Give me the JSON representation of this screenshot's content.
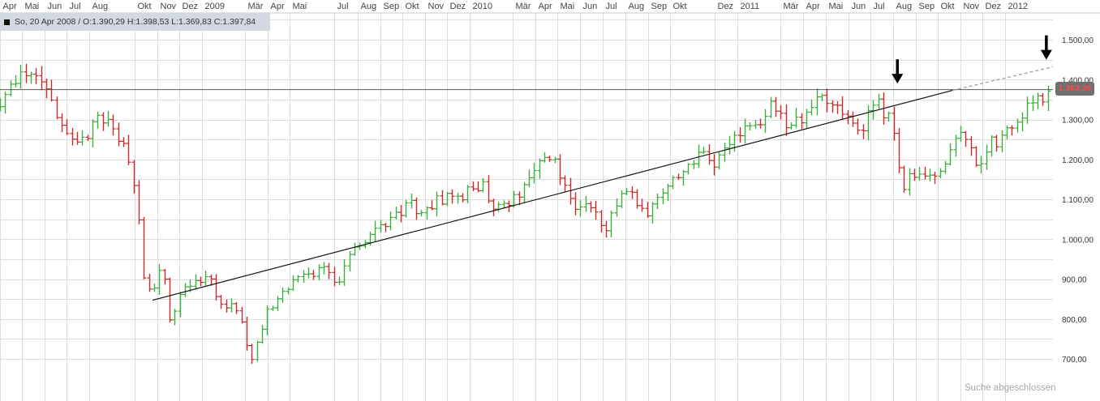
{
  "info_bar": {
    "text": "So, 20 Apr 2008 / O:1.390,29   H:1.398,53   L:1.369,83   C:1.397,84"
  },
  "last_price_badge": "1.362,36",
  "status_text": "Suche abgeschlossen",
  "colors": {
    "up": "#3cae3c",
    "down": "#cc2a2a",
    "grid": "#dcdcdc",
    "trendline": "#111111",
    "horizontal_line": "#555555",
    "projection": "#999999",
    "badge_bg": "#6f6f6f",
    "badge_text": "#ff4b4b",
    "info_bg": "#d2d9e3"
  },
  "chart_data": {
    "type": "ohlc",
    "interval": "weekly",
    "title": "",
    "xlabel": "",
    "ylabel": "",
    "ylim": [
      660,
      1570
    ],
    "y_ticks": [
      "700,00",
      "800,00",
      "900,00",
      "1.000,00",
      "1.100,00",
      "1.200,00",
      "1.300,00",
      "1.400,00",
      "1.500,00"
    ],
    "y_tick_values": [
      700,
      800,
      900,
      1000,
      1100,
      1200,
      1300,
      1400,
      1500
    ],
    "y_axis_side": "right",
    "grid": true,
    "x_tick_labels": [
      "Apr",
      "Mai",
      "Jun",
      "Jul",
      "Aug",
      "Okt",
      "Nov",
      "Dez",
      "2009",
      "Mär",
      "Apr",
      "Mai",
      "Jul",
      "Aug",
      "Sep",
      "Okt",
      "Nov",
      "Dez",
      "2010",
      "Mär",
      "Apr",
      "Mai",
      "Jun",
      "Jul",
      "Aug",
      "Sep",
      "Okt",
      "Dez",
      "2011",
      "Mär",
      "Apr",
      "Mai",
      "Jun",
      "Jul",
      "Aug",
      "Sep",
      "Okt",
      "Nov",
      "Dez",
      "2012"
    ],
    "x_tick_dates": [
      "2008-04-01",
      "2008-05-01",
      "2008-06-01",
      "2008-07-01",
      "2008-08-01",
      "2008-10-01",
      "2008-11-01",
      "2008-12-01",
      "2009-01-01",
      "2009-03-01",
      "2009-04-01",
      "2009-05-01",
      "2009-07-01",
      "2009-08-01",
      "2009-09-01",
      "2009-10-01",
      "2009-11-01",
      "2009-12-01",
      "2010-01-01",
      "2010-03-01",
      "2010-04-01",
      "2010-05-01",
      "2010-06-01",
      "2010-07-01",
      "2010-08-01",
      "2010-09-01",
      "2010-10-01",
      "2010-12-01",
      "2011-01-01",
      "2011-03-01",
      "2011-04-01",
      "2011-05-01",
      "2011-06-01",
      "2011-07-01",
      "2011-08-01",
      "2011-09-01",
      "2011-10-01",
      "2011-11-01",
      "2011-12-01",
      "2012-01-01"
    ],
    "x_range": [
      "2008-04-01",
      "2012-03-06"
    ],
    "anchors": [
      [
        "2008-04-01",
        1330
      ],
      [
        "2008-04-20",
        1398
      ],
      [
        "2008-05-18",
        1426
      ],
      [
        "2008-06-08",
        1355
      ],
      [
        "2008-06-29",
        1270
      ],
      [
        "2008-07-15",
        1230
      ],
      [
        "2008-08-10",
        1298
      ],
      [
        "2008-08-31",
        1282
      ],
      [
        "2008-09-21",
        1210
      ],
      [
        "2008-10-05",
        1100
      ],
      [
        "2008-10-12",
        905
      ],
      [
        "2008-10-26",
        875
      ],
      [
        "2008-11-09",
        930
      ],
      [
        "2008-11-20",
        780
      ],
      [
        "2008-12-07",
        880
      ],
      [
        "2008-12-28",
        890
      ],
      [
        "2009-01-10",
        920
      ],
      [
        "2009-01-24",
        830
      ],
      [
        "2009-02-14",
        840
      ],
      [
        "2009-03-01",
        760
      ],
      [
        "2009-03-08",
        690
      ],
      [
        "2009-03-29",
        810
      ],
      [
        "2009-05-03",
        890
      ],
      [
        "2009-06-14",
        930
      ],
      [
        "2009-07-05",
        885
      ],
      [
        "2009-07-19",
        950
      ],
      [
        "2009-08-16",
        1010
      ],
      [
        "2009-09-13",
        1050
      ],
      [
        "2009-10-11",
        1090
      ],
      [
        "2009-10-25",
        1050
      ],
      [
        "2009-11-15",
        1100
      ],
      [
        "2009-12-20",
        1110
      ],
      [
        "2010-01-17",
        1140
      ],
      [
        "2010-02-07",
        1070
      ],
      [
        "2010-03-07",
        1110
      ],
      [
        "2010-04-04",
        1185
      ],
      [
        "2010-04-25",
        1210
      ],
      [
        "2010-05-09",
        1130
      ],
      [
        "2010-05-23",
        1080
      ],
      [
        "2010-06-13",
        1100
      ],
      [
        "2010-07-04",
        1020
      ],
      [
        "2010-07-18",
        1090
      ],
      [
        "2010-08-08",
        1120
      ],
      [
        "2010-08-29",
        1060
      ],
      [
        "2010-09-26",
        1140
      ],
      [
        "2010-10-24",
        1180
      ],
      [
        "2010-11-14",
        1225
      ],
      [
        "2010-11-28",
        1190
      ],
      [
        "2010-12-19",
        1245
      ],
      [
        "2011-01-23",
        1285
      ],
      [
        "2011-02-20",
        1340
      ],
      [
        "2011-03-13",
        1275
      ],
      [
        "2011-04-10",
        1330
      ],
      [
        "2011-05-01",
        1360
      ],
      [
        "2011-05-22",
        1330
      ],
      [
        "2011-06-19",
        1280
      ],
      [
        "2011-07-10",
        1345
      ],
      [
        "2011-07-31",
        1290
      ],
      [
        "2011-08-07",
        1200
      ],
      [
        "2011-08-14",
        1130
      ],
      [
        "2011-09-04",
        1180
      ],
      [
        "2011-09-25",
        1140
      ],
      [
        "2011-10-09",
        1170
      ],
      [
        "2011-10-30",
        1280
      ],
      [
        "2011-11-27",
        1180
      ],
      [
        "2011-12-11",
        1250
      ],
      [
        "2011-12-25",
        1240
      ],
      [
        "2012-01-15",
        1300
      ],
      [
        "2012-02-19",
        1355
      ],
      [
        "2012-03-04",
        1365
      ]
    ],
    "horizontal_line": 1375,
    "trendline": {
      "start": [
        "2008-10-26",
        847
      ],
      "end": [
        "2011-10-21",
        1373
      ]
    },
    "trendline_projection": {
      "start": [
        "2011-10-21",
        1373
      ],
      "end": [
        "2012-03-06",
        1432
      ]
    },
    "annotations": [
      {
        "type": "arrow-down",
        "x": "2011-08-07",
        "y": 1390
      },
      {
        "type": "arrow-down",
        "x": "2012-02-26",
        "y": 1450
      }
    ],
    "last_close": 1362.36
  }
}
